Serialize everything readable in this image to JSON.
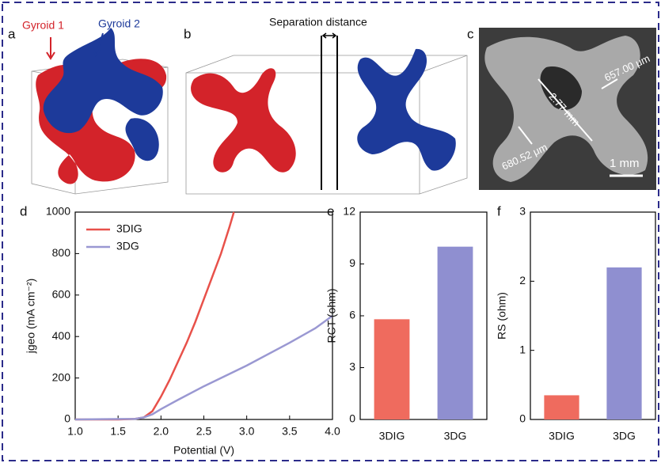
{
  "figure": {
    "panel_a": {
      "letter": "a",
      "gyroid_1": "Gyroid 1",
      "gyroid_2": "Gyroid 2"
    },
    "panel_b": {
      "letter": "b",
      "separation": "Separation distance"
    },
    "panel_c": {
      "letter": "c",
      "length": "2.77 mm",
      "width_1": "657.00 μm",
      "width_2": "680.52 μm",
      "scale_bar": "1 mm"
    }
  },
  "chart_data": [
    {
      "type": "line",
      "panel_label": "d",
      "x_label": "Potential (V)",
      "y_label": "jgeo (mA cm⁻²)",
      "xlim": [
        1,
        4
      ],
      "ylim": [
        0,
        1000
      ],
      "xticks": [
        {
          "value": 1,
          "label": "1.0"
        },
        {
          "value": 1.5,
          "label": "1.5"
        },
        {
          "value": 2,
          "label": "2.0"
        },
        {
          "value": 2.5,
          "label": "2.5"
        },
        {
          "value": 3,
          "label": "3.0"
        },
        {
          "value": 3.5,
          "label": "3.5"
        },
        {
          "value": 4,
          "label": "4.0"
        }
      ],
      "yticks": [
        0,
        200,
        400,
        600,
        800,
        1000
      ],
      "series": [
        {
          "name": "3DIG",
          "color": "#e8514a",
          "x": [
            1.0,
            1.5,
            1.7,
            1.8,
            1.9,
            2.0,
            2.1,
            2.2,
            2.3,
            2.4,
            2.5,
            2.6,
            2.7,
            2.8,
            2.85
          ],
          "values": [
            0,
            0,
            3,
            10,
            40,
            110,
            190,
            280,
            370,
            470,
            580,
            690,
            800,
            930,
            1000
          ]
        },
        {
          "name": "3DG",
          "color": "#9a98d2",
          "x": [
            1.0,
            1.7,
            1.8,
            1.9,
            2.0,
            2.2,
            2.5,
            3.0,
            3.5,
            3.8,
            4.0
          ],
          "values": [
            0,
            3,
            10,
            25,
            50,
            95,
            160,
            260,
            370,
            440,
            500
          ]
        }
      ]
    },
    {
      "type": "bar",
      "panel_label": "e",
      "y_label": "RCT (ohm)",
      "categories": [
        "3DIG",
        "3DG"
      ],
      "values": [
        5.8,
        10
      ],
      "colors": [
        "#ef6b5e",
        "#8f8fd0"
      ],
      "ylim": [
        0,
        12
      ],
      "yticks": [
        0,
        3,
        6,
        9,
        12
      ]
    },
    {
      "type": "bar",
      "panel_label": "f",
      "y_label": "RS (ohm)",
      "categories": [
        "3DIG",
        "3DG"
      ],
      "values": [
        0.35,
        2.2
      ],
      "colors": [
        "#ef6b5e",
        "#8f8fd0"
      ],
      "ylim": [
        0,
        3
      ],
      "yticks": [
        0,
        1,
        2,
        3
      ]
    }
  ]
}
